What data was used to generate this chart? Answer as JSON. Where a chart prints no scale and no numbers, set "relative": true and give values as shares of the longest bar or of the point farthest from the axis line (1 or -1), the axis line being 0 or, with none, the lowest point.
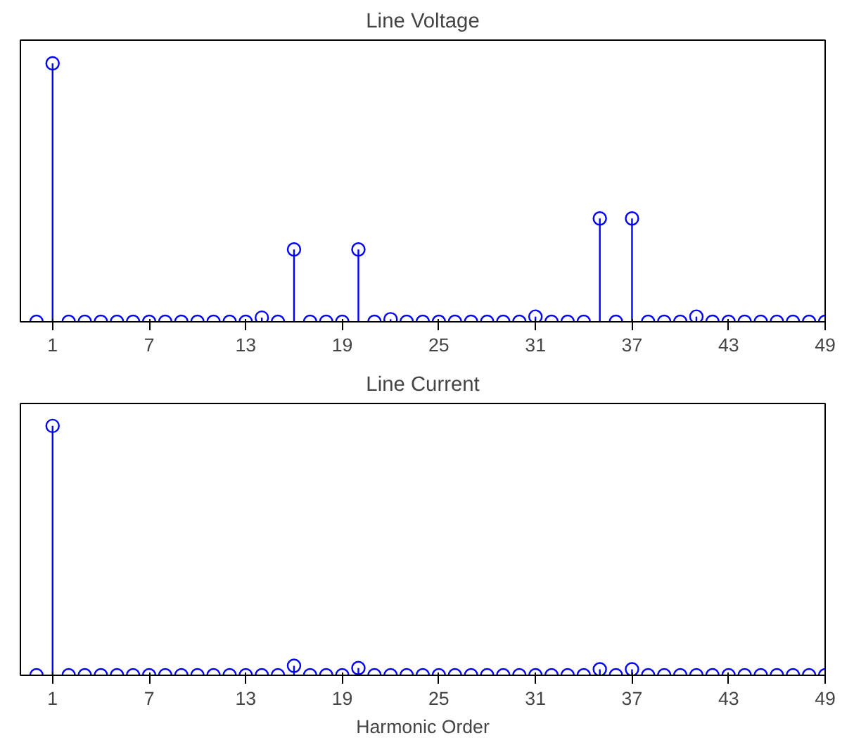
{
  "chart_data": [
    {
      "type": "lollipop",
      "title": "Line Voltage",
      "relative": true,
      "marker": "circle",
      "grid": false,
      "x": [
        0,
        1,
        2,
        3,
        4,
        5,
        6,
        7,
        8,
        9,
        10,
        11,
        12,
        13,
        14,
        15,
        16,
        17,
        18,
        19,
        20,
        21,
        22,
        23,
        24,
        25,
        26,
        27,
        28,
        29,
        30,
        31,
        32,
        33,
        34,
        35,
        36,
        37,
        38,
        39,
        40,
        41,
        42,
        43,
        44,
        45,
        46,
        47,
        48,
        49
      ],
      "xlim": [
        -1,
        49
      ],
      "xticks": [
        1,
        7,
        13,
        19,
        25,
        31,
        37,
        43,
        49
      ],
      "series": [
        {
          "color": "#0000ff",
          "values": [
            0,
            1,
            0,
            0,
            0,
            0,
            0,
            0,
            0,
            0,
            0,
            0,
            0,
            0,
            0.016,
            0,
            0.28,
            0,
            0,
            0,
            0.28,
            0,
            0.01,
            0,
            0,
            0,
            0,
            0,
            0,
            0,
            0,
            0.02,
            0,
            0,
            0,
            0.4,
            0,
            0.4,
            0,
            0,
            0,
            0.02,
            0,
            0,
            0,
            0,
            0,
            0,
            0,
            0
          ]
        }
      ]
    },
    {
      "type": "lollipop",
      "title": "Line Current",
      "xlabel": "Harmonic Order",
      "relative": true,
      "marker": "circle",
      "grid": false,
      "x": [
        0,
        1,
        2,
        3,
        4,
        5,
        6,
        7,
        8,
        9,
        10,
        11,
        12,
        13,
        14,
        15,
        16,
        17,
        18,
        19,
        20,
        21,
        22,
        23,
        24,
        25,
        26,
        27,
        28,
        29,
        30,
        31,
        32,
        33,
        34,
        35,
        36,
        37,
        38,
        39,
        40,
        41,
        42,
        43,
        44,
        45,
        46,
        47,
        48,
        49
      ],
      "xlim": [
        -1,
        49
      ],
      "xticks": [
        1,
        7,
        13,
        19,
        25,
        31,
        37,
        43,
        49
      ],
      "series": [
        {
          "color": "#0000ff",
          "values": [
            0,
            1,
            0,
            0,
            0,
            0,
            0,
            0,
            0,
            0,
            0,
            0,
            0,
            0,
            0,
            0,
            0.038,
            0,
            0,
            0,
            0.029,
            0,
            0,
            0,
            0,
            0,
            0,
            0,
            0,
            0,
            0,
            0,
            0,
            0,
            0,
            0.024,
            0,
            0.024,
            0,
            0,
            0,
            0,
            0,
            0,
            0,
            0,
            0,
            0,
            0,
            0
          ]
        }
      ]
    }
  ]
}
